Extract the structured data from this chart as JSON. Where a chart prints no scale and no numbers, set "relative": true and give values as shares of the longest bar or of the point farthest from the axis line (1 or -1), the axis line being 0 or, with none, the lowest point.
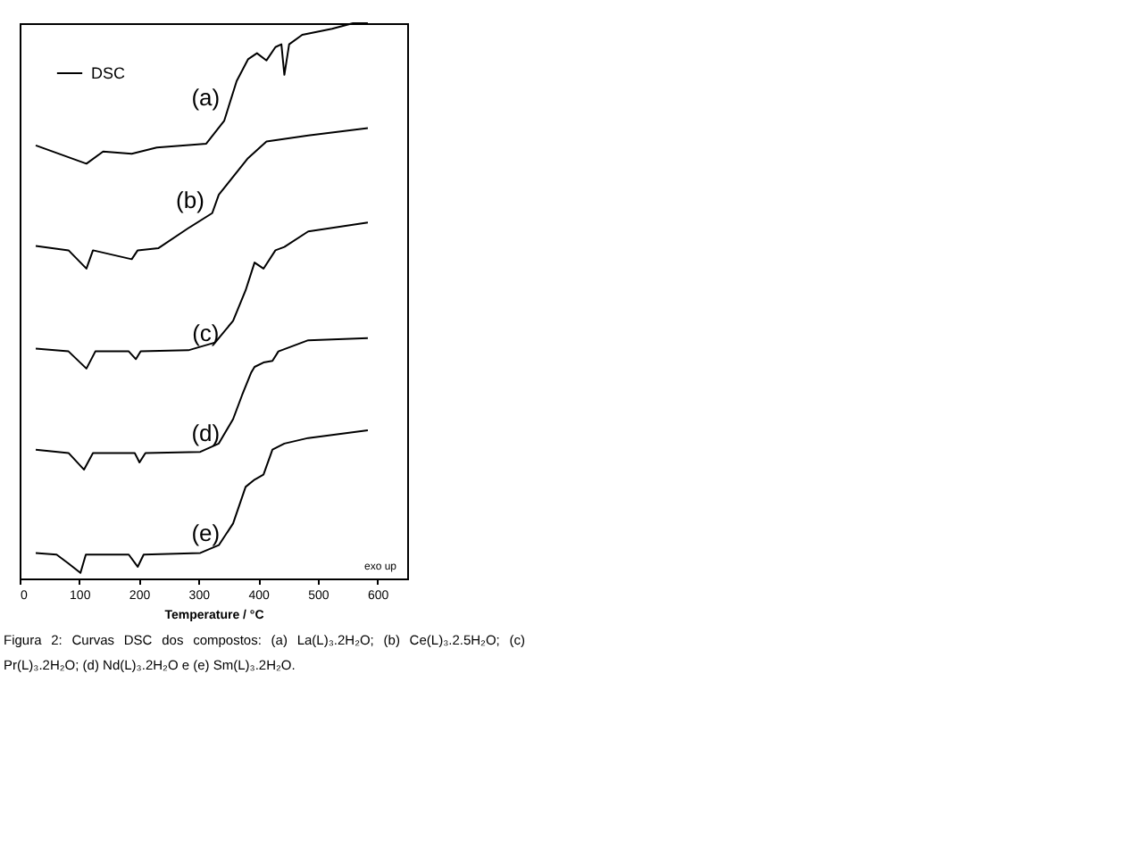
{
  "chart_data": {
    "type": "line",
    "relative": true,
    "xlabel": "Temperature / °C",
    "xlim": [
      0,
      650
    ],
    "xticks": [
      0,
      100,
      200,
      300,
      400,
      500,
      600
    ],
    "grid": false,
    "legend": "top left",
    "marker": "none",
    "line_style": "solid",
    "series": [
      {
        "name": "DSC",
        "color": "#000000",
        "x": [
          27,
          112,
          140,
          188,
          230,
          313,
          343,
          364,
          383,
          398,
          414,
          429,
          439,
          444,
          452,
          474,
          524,
          559,
          584
        ],
        "values": [
          0.78,
          0.747,
          0.769,
          0.765,
          0.776,
          0.783,
          0.824,
          0.896,
          0.935,
          0.946,
          0.933,
          0.957,
          0.962,
          0.907,
          0.962,
          0.979,
          0.99,
          1,
          1
        ]
      },
      {
        "color": "#000000",
        "x": [
          27,
          82,
          112,
          123,
          188,
          198,
          233,
          283,
          323,
          334,
          383,
          414,
          484,
          584
        ],
        "values": [
          0.599,
          0.591,
          0.558,
          0.591,
          0.575,
          0.591,
          0.595,
          0.631,
          0.658,
          0.691,
          0.757,
          0.787,
          0.798,
          0.811
        ]
      },
      {
        "color": "#000000",
        "x": [
          27,
          82,
          112,
          127,
          183,
          195,
          203,
          283,
          328,
          358,
          379,
          394,
          409,
          429,
          444,
          484,
          584
        ],
        "values": [
          0.414,
          0.409,
          0.378,
          0.409,
          0.409,
          0.395,
          0.409,
          0.411,
          0.425,
          0.464,
          0.519,
          0.569,
          0.558,
          0.591,
          0.597,
          0.625,
          0.641
        ]
      },
      {
        "color": "#000000",
        "x": [
          27,
          82,
          108,
          123,
          193,
          201,
          211,
          303,
          334,
          358,
          373,
          388,
          394,
          409,
          424,
          434,
          484,
          584
        ],
        "values": [
          0.232,
          0.226,
          0.196,
          0.226,
          0.226,
          0.209,
          0.226,
          0.228,
          0.243,
          0.287,
          0.33,
          0.37,
          0.381,
          0.389,
          0.392,
          0.409,
          0.429,
          0.433
        ]
      },
      {
        "color": "#000000",
        "x": [
          27,
          62,
          82,
          102,
          111,
          183,
          198,
          208,
          303,
          334,
          358,
          379,
          394,
          409,
          424,
          444,
          484,
          584
        ],
        "values": [
          0.046,
          0.043,
          0.027,
          0.01,
          0.043,
          0.043,
          0.021,
          0.043,
          0.046,
          0.06,
          0.099,
          0.165,
          0.178,
          0.187,
          0.232,
          0.243,
          0.253,
          0.267
        ]
      }
    ],
    "annotations": [
      "(a)",
      "(b)",
      "(c)",
      "(d)",
      "(e)",
      "exo up",
      "Figura 2: Curvas DSC dos compostos: (a) La(L)₃.2H₂O; (b) Ce(L)₃.2.5H₂O; (c) Pr(L)₃.2H₂O; (d) Nd(L)₃.2H₂O e (e) Sm(L)₃.2H₂O."
    ]
  }
}
